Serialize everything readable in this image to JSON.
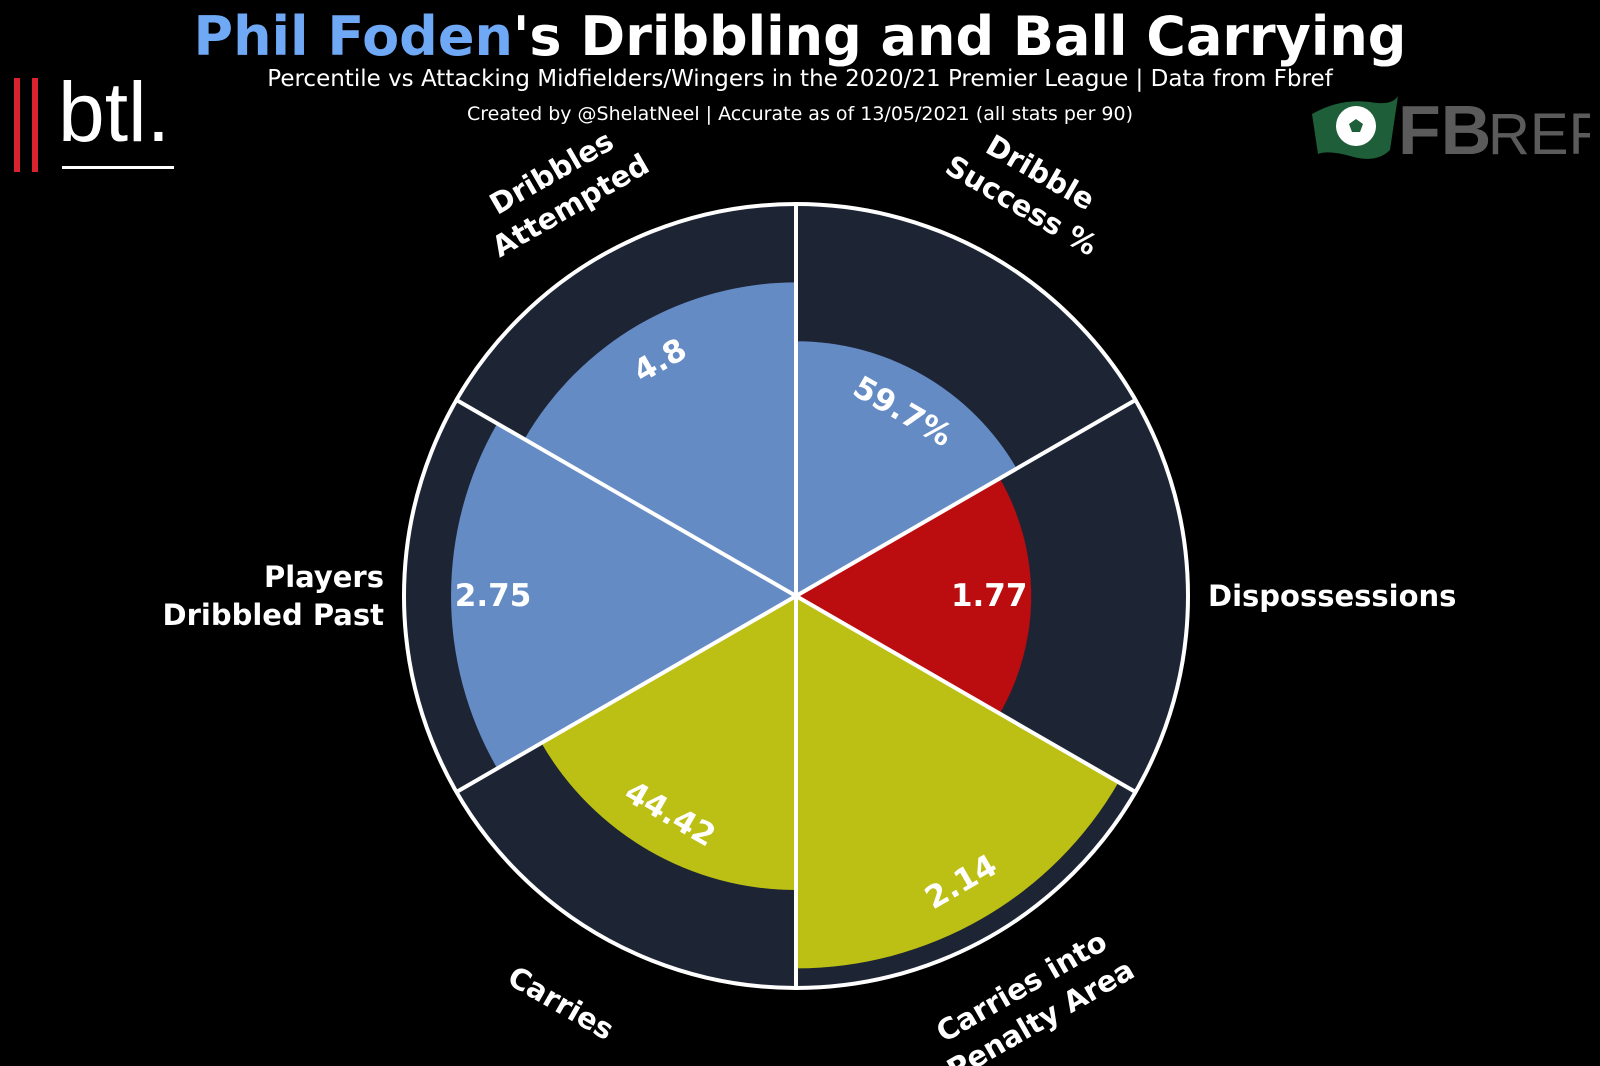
{
  "header": {
    "player_name": "Phil Foden",
    "title_rest": "'s Dribbling and Ball Carrying",
    "subtitle": "Percentile vs Attacking Midfielders/Wingers in the 2020/21 Premier League | Data from Fbref",
    "credit": "Created by @ShelatNeel | Accurate as of 13/05/2021 (all stats per 90)"
  },
  "logos": {
    "btl": "btl.",
    "fbref_fb": "FB",
    "fbref_ref": "REF"
  },
  "colors": {
    "background": "#000000",
    "name_accent": "#6fa8f5",
    "slice_bg": "#1d2535",
    "dribbling": "#658bc5",
    "negative": "#bb0c10",
    "carrying": "#bcbf14",
    "divider": "#ffffff"
  },
  "chart_data": {
    "type": "pie",
    "subtype": "percentile-radar",
    "rlim": [
      0,
      100
    ],
    "slices": [
      {
        "label": "Dribble\nSuccess %",
        "value": "59.7%",
        "percentile": 65,
        "group": "dribbling"
      },
      {
        "label": "Dispossessions",
        "value": "1.77",
        "percentile": 60,
        "group": "negative"
      },
      {
        "label": "Carries into\nPenalty Area",
        "value": "2.14",
        "percentile": 95,
        "group": "carrying"
      },
      {
        "label": "Carries",
        "value": "44.42",
        "percentile": 75,
        "group": "carrying"
      },
      {
        "label": "Players\nDribbled Past",
        "value": "2.75",
        "percentile": 88,
        "group": "dribbling"
      },
      {
        "label": "Dribbles\nAttempted",
        "value": "4.8",
        "percentile": 80,
        "group": "dribbling"
      }
    ]
  }
}
